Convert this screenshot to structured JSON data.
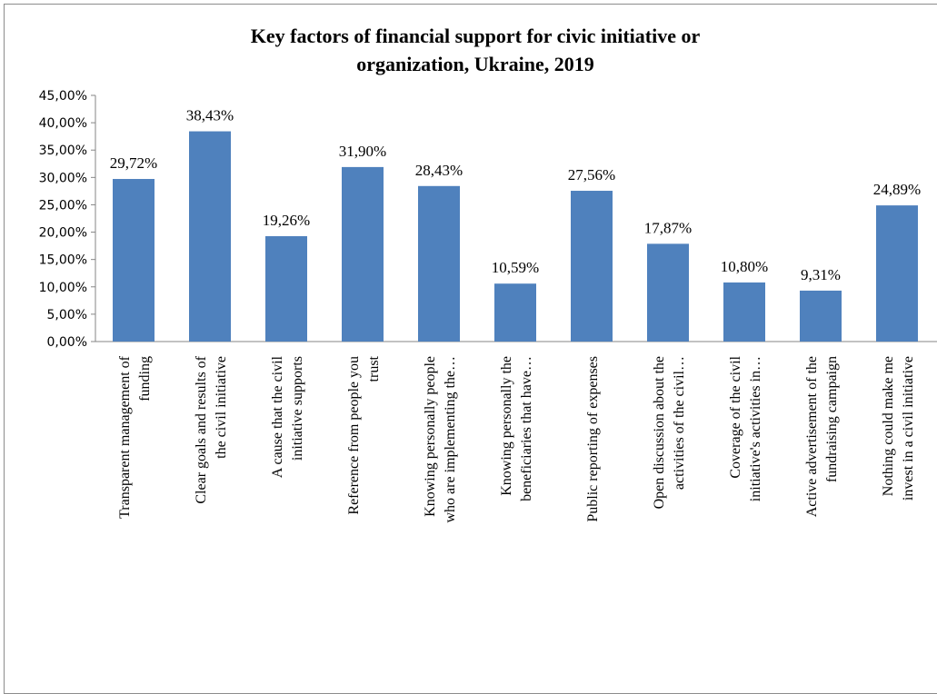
{
  "chart_data": {
    "type": "bar",
    "title_lines": [
      "Key factors of financial support for civic initiative or",
      "organization, Ukraine, 2019"
    ],
    "categories": [
      [
        "Transparent management of",
        "funding"
      ],
      [
        "Clear goals and results of",
        "the civil initiative"
      ],
      [
        "A cause that the civil",
        "initiative supports"
      ],
      [
        "Reference from people you",
        "trust"
      ],
      [
        "Knowing personally people",
        "who are implementing the…"
      ],
      [
        "Knowing personally the",
        "beneficiaries that have…"
      ],
      [
        "Public reporting of expenses"
      ],
      [
        "Open discussion about the",
        "activities of the civil…"
      ],
      [
        "Coverage of the civil",
        "initiative's activities in…"
      ],
      [
        "Active advertisement of the",
        "fundraising campaign"
      ],
      [
        "Nothing could make me",
        "invest in a civil initiative"
      ]
    ],
    "values": [
      29.72,
      38.43,
      19.26,
      31.9,
      28.43,
      10.59,
      27.56,
      17.87,
      10.8,
      9.31,
      24.89
    ],
    "data_labels": [
      "29,72%",
      "38,43%",
      "19,26%",
      "31,90%",
      "28,43%",
      "10,59%",
      "27,56%",
      "17,87%",
      "10,80%",
      "9,31%",
      "24,89%"
    ],
    "y_ticks": [
      "0,00%",
      "5,00%",
      "10,00%",
      "15,00%",
      "20,00%",
      "25,00%",
      "30,00%",
      "35,00%",
      "40,00%",
      "45,00%"
    ],
    "ylim": [
      0,
      45
    ],
    "grid": false,
    "legend": "none",
    "bar_color": "#4f81bd"
  }
}
